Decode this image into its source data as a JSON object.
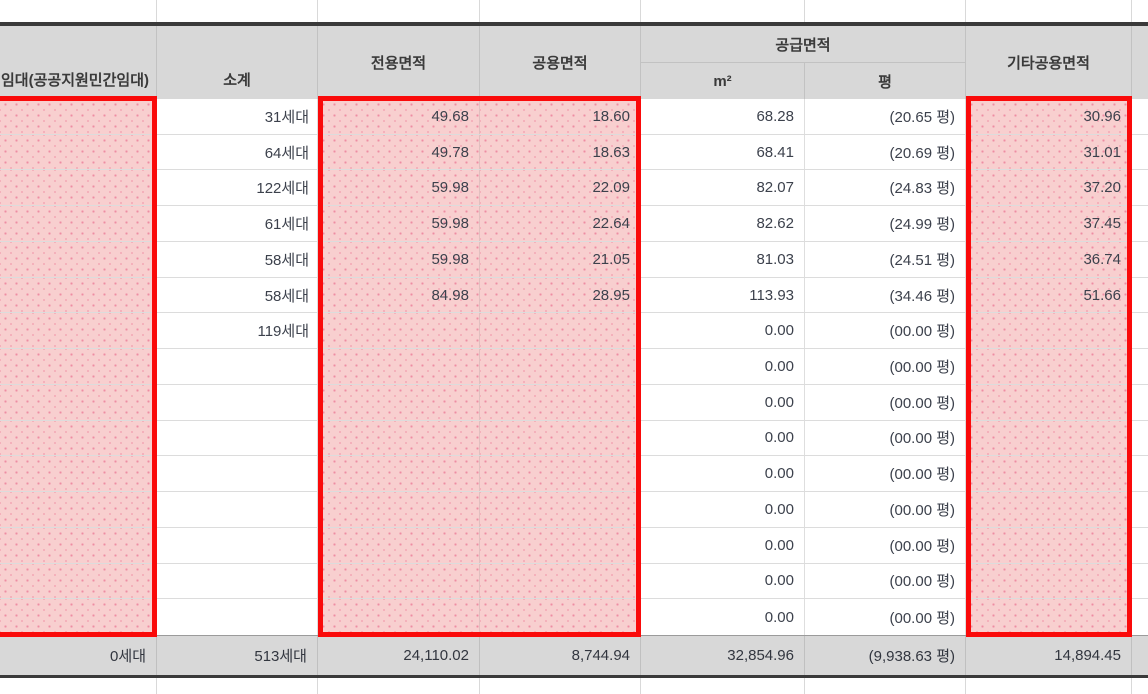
{
  "table": {
    "header": {
      "rental": "임대(공공지원민간임대)",
      "subtotal": "소계",
      "exclusive_area": "전용면적",
      "common_area": "공용면적",
      "supply_area": "공급면적",
      "supply_m2": "m²",
      "supply_pyeong": "평",
      "other_common_area": "기타공용면적"
    },
    "rows": [
      {
        "subtotal": "31세대",
        "exclusive": "49.68",
        "common": "18.60",
        "m2": "68.28",
        "pyeong": "(20.65 평)",
        "other": "30.96"
      },
      {
        "subtotal": "64세대",
        "exclusive": "49.78",
        "common": "18.63",
        "m2": "68.41",
        "pyeong": "(20.69 평)",
        "other": "31.01"
      },
      {
        "subtotal": "122세대",
        "exclusive": "59.98",
        "common": "22.09",
        "m2": "82.07",
        "pyeong": "(24.83 평)",
        "other": "37.20"
      },
      {
        "subtotal": "61세대",
        "exclusive": "59.98",
        "common": "22.64",
        "m2": "82.62",
        "pyeong": "(24.99 평)",
        "other": "37.45"
      },
      {
        "subtotal": "58세대",
        "exclusive": "59.98",
        "common": "21.05",
        "m2": "81.03",
        "pyeong": "(24.51 평)",
        "other": "36.74"
      },
      {
        "subtotal": "58세대",
        "exclusive": "84.98",
        "common": "28.95",
        "m2": "113.93",
        "pyeong": "(34.46 평)",
        "other": "51.66"
      },
      {
        "subtotal": "119세대",
        "exclusive": "",
        "common": "",
        "m2": "0.00",
        "pyeong": "(00.00 평)",
        "other": ""
      },
      {
        "subtotal": "",
        "exclusive": "",
        "common": "",
        "m2": "0.00",
        "pyeong": "(00.00 평)",
        "other": ""
      },
      {
        "subtotal": "",
        "exclusive": "",
        "common": "",
        "m2": "0.00",
        "pyeong": "(00.00 평)",
        "other": ""
      },
      {
        "subtotal": "",
        "exclusive": "",
        "common": "",
        "m2": "0.00",
        "pyeong": "(00.00 평)",
        "other": ""
      },
      {
        "subtotal": "",
        "exclusive": "",
        "common": "",
        "m2": "0.00",
        "pyeong": "(00.00 평)",
        "other": ""
      },
      {
        "subtotal": "",
        "exclusive": "",
        "common": "",
        "m2": "0.00",
        "pyeong": "(00.00 평)",
        "other": ""
      },
      {
        "subtotal": "",
        "exclusive": "",
        "common": "",
        "m2": "0.00",
        "pyeong": "(00.00 평)",
        "other": ""
      },
      {
        "subtotal": "",
        "exclusive": "",
        "common": "",
        "m2": "0.00",
        "pyeong": "(00.00 평)",
        "other": ""
      },
      {
        "subtotal": "",
        "exclusive": "",
        "common": "",
        "m2": "0.00",
        "pyeong": "(00.00 평)",
        "other": ""
      }
    ],
    "total": {
      "rental": "0세대",
      "subtotal": "513세대",
      "exclusive": "24,110.02",
      "common": "8,744.94",
      "m2": "32,854.96",
      "pyeong": "(9,938.63 평)",
      "other": "14,894.45"
    }
  },
  "colors": {
    "header_bg": "#d8d8d8",
    "total_bg": "#d8d8d8",
    "highlight_fill": "#f8cfcf",
    "highlight_dot": "#ee8da3",
    "highlight_border": "#fa0a0a",
    "heavy_rule": "#3a3a3a",
    "grid_line": "#dcdcdc",
    "text": "#3c414c"
  }
}
